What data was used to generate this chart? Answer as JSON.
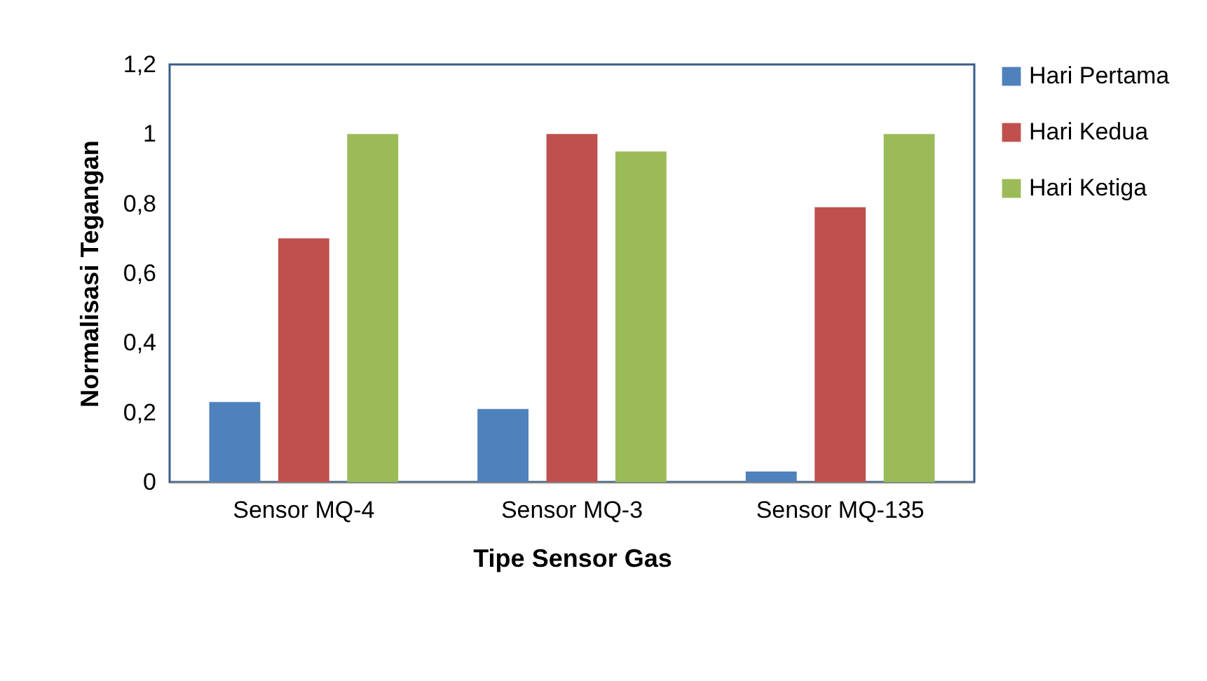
{
  "chart_data": {
    "type": "bar",
    "xlabel": "Tipe Sensor Gas",
    "ylabel": "Normalisasi Tegangan",
    "categories": [
      "Sensor MQ-4",
      "Sensor MQ-3",
      "Sensor MQ-135"
    ],
    "series": [
      {
        "name": "Hari Pertama",
        "color": "#4f81bd",
        "values": [
          0.23,
          0.21,
          0.03
        ]
      },
      {
        "name": "Hari Kedua",
        "color": "#c0504d",
        "values": [
          0.7,
          1.0,
          0.79
        ]
      },
      {
        "name": "Hari Ketiga",
        "color": "#9bbb59",
        "values": [
          1.0,
          0.95,
          1.0
        ]
      }
    ],
    "ylim": [
      0,
      1.2
    ],
    "yticks": [
      0,
      {
        "value": 0.2,
        "label": "0,2"
      },
      {
        "value": 0.4,
        "label": "0,4"
      },
      {
        "value": 0.6,
        "label": "0,6"
      },
      {
        "value": 0.8,
        "label": "0,8"
      },
      1,
      {
        "value": 1.2,
        "label": "1,2"
      }
    ],
    "grid": false,
    "legend": "right"
  }
}
